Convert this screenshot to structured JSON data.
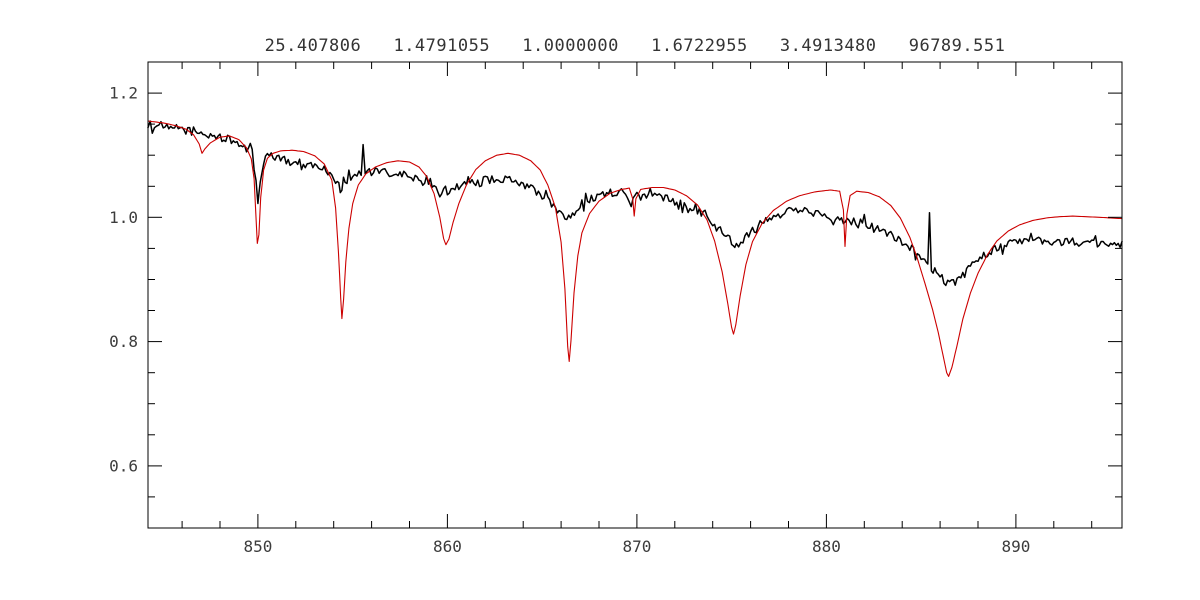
{
  "page": {
    "background": "#ffffff"
  },
  "chart_data": {
    "type": "line",
    "title": "25.407806   1.4791055   1.0000000   1.6722955   3.4913480   96789.551",
    "title_values": [
      "25.407806",
      "1.4791055",
      "1.0000000",
      "1.6722955",
      "3.4913480",
      "96789.551"
    ],
    "xlabel": "",
    "ylabel": "",
    "xlim": [
      844.2,
      895.6
    ],
    "ylim": [
      0.5,
      1.25
    ],
    "x_major_ticks": [
      850,
      860,
      870,
      880,
      890
    ],
    "x_tick_labels": [
      "850",
      "860",
      "870",
      "880",
      "890"
    ],
    "x_minor_step": 2,
    "y_major_ticks": [
      0.6,
      0.8,
      1.0,
      1.2
    ],
    "y_tick_labels": [
      "0.6",
      "0.8",
      "1.0",
      "1.2"
    ],
    "y_minor_step": 0.05,
    "grid": false,
    "legend": "none",
    "frame_color": "#000000",
    "tick_label_color": "#3c3c3c",
    "series": [
      {
        "name": "observed-spectrum",
        "color": "#000000",
        "stroke_width": 1.5,
        "noise_amplitude": 0.0065,
        "points": [
          [
            844.2,
            1.15
          ],
          [
            845.0,
            1.147
          ],
          [
            845.4,
            1.141
          ],
          [
            845.8,
            1.145
          ],
          [
            846.3,
            1.139
          ],
          [
            846.8,
            1.135
          ],
          [
            847.3,
            1.133
          ],
          [
            847.8,
            1.13
          ],
          [
            848.3,
            1.127
          ],
          [
            848.8,
            1.12
          ],
          [
            849.3,
            1.114
          ],
          [
            849.7,
            1.104
          ],
          [
            849.9,
            1.062
          ],
          [
            850.0,
            1.026
          ],
          [
            850.12,
            1.058
          ],
          [
            850.4,
            1.098
          ],
          [
            850.9,
            1.097
          ],
          [
            851.4,
            1.092
          ],
          [
            852.0,
            1.088
          ],
          [
            852.6,
            1.086
          ],
          [
            853.2,
            1.082
          ],
          [
            853.7,
            1.074
          ],
          [
            854.1,
            1.06
          ],
          [
            854.35,
            1.046
          ],
          [
            854.6,
            1.058
          ],
          [
            855.0,
            1.068
          ],
          [
            855.45,
            1.071
          ],
          [
            855.55,
            1.118
          ],
          [
            855.66,
            1.07
          ],
          [
            856.1,
            1.074
          ],
          [
            856.7,
            1.072
          ],
          [
            857.3,
            1.07
          ],
          [
            857.9,
            1.067
          ],
          [
            858.4,
            1.062
          ],
          [
            858.9,
            1.054
          ],
          [
            859.3,
            1.045
          ],
          [
            859.6,
            1.038
          ],
          [
            859.9,
            1.041
          ],
          [
            860.3,
            1.047
          ],
          [
            860.8,
            1.052
          ],
          [
            861.4,
            1.057
          ],
          [
            862.0,
            1.06
          ],
          [
            862.7,
            1.062
          ],
          [
            863.4,
            1.059
          ],
          [
            864.0,
            1.054
          ],
          [
            864.6,
            1.044
          ],
          [
            865.1,
            1.032
          ],
          [
            865.6,
            1.019
          ],
          [
            866.0,
            1.007
          ],
          [
            866.3,
            0.997
          ],
          [
            866.6,
            1.007
          ],
          [
            867.0,
            1.019
          ],
          [
            867.5,
            1.029
          ],
          [
            868.1,
            1.036
          ],
          [
            868.7,
            1.04
          ],
          [
            869.3,
            1.04
          ],
          [
            869.7,
            1.017
          ],
          [
            870.1,
            1.034
          ],
          [
            870.7,
            1.035
          ],
          [
            871.3,
            1.032
          ],
          [
            871.9,
            1.027
          ],
          [
            872.5,
            1.021
          ],
          [
            873.1,
            1.014
          ],
          [
            873.6,
            1.004
          ],
          [
            874.1,
            0.989
          ],
          [
            874.6,
            0.974
          ],
          [
            875.0,
            0.961
          ],
          [
            875.25,
            0.956
          ],
          [
            875.6,
            0.964
          ],
          [
            876.0,
            0.977
          ],
          [
            876.5,
            0.991
          ],
          [
            877.1,
            1.002
          ],
          [
            877.8,
            1.009
          ],
          [
            878.5,
            1.012
          ],
          [
            879.2,
            1.009
          ],
          [
            879.9,
            1.004
          ],
          [
            880.6,
            0.999
          ],
          [
            881.2,
            0.996
          ],
          [
            881.8,
            0.992
          ],
          [
            882.4,
            0.987
          ],
          [
            883.0,
            0.979
          ],
          [
            883.6,
            0.969
          ],
          [
            884.2,
            0.957
          ],
          [
            884.7,
            0.944
          ],
          [
            885.1,
            0.931
          ],
          [
            885.35,
            0.924
          ],
          [
            885.44,
            1.008
          ],
          [
            885.54,
            0.918
          ],
          [
            885.9,
            0.911
          ],
          [
            886.2,
            0.899
          ],
          [
            886.5,
            0.892
          ],
          [
            886.8,
            0.897
          ],
          [
            887.2,
            0.907
          ],
          [
            887.6,
            0.919
          ],
          [
            888.0,
            0.931
          ],
          [
            888.5,
            0.943
          ],
          [
            889.0,
            0.951
          ],
          [
            889.6,
            0.957
          ],
          [
            890.2,
            0.961
          ],
          [
            890.8,
            0.963
          ],
          [
            891.4,
            0.961
          ],
          [
            892.0,
            0.959
          ],
          [
            892.6,
            0.961
          ],
          [
            893.2,
            0.962
          ],
          [
            893.8,
            0.957
          ],
          [
            894.4,
            0.956
          ],
          [
            895.0,
            0.96
          ],
          [
            895.6,
            0.957
          ]
        ]
      },
      {
        "name": "model-spectrum",
        "color": "#cc0000",
        "stroke_width": 1.1,
        "noise_amplitude": 0,
        "points": [
          [
            844.2,
            1.155
          ],
          [
            845.0,
            1.152
          ],
          [
            845.6,
            1.148
          ],
          [
            846.2,
            1.142
          ],
          [
            846.6,
            1.133
          ],
          [
            846.9,
            1.118
          ],
          [
            847.05,
            1.103
          ],
          [
            847.2,
            1.11
          ],
          [
            847.5,
            1.12
          ],
          [
            848.0,
            1.129
          ],
          [
            848.5,
            1.131
          ],
          [
            849.0,
            1.125
          ],
          [
            849.4,
            1.112
          ],
          [
            849.65,
            1.094
          ],
          [
            849.8,
            1.062
          ],
          [
            849.9,
            1.0
          ],
          [
            849.97,
            0.958
          ],
          [
            850.05,
            0.972
          ],
          [
            850.15,
            1.032
          ],
          [
            850.3,
            1.076
          ],
          [
            850.5,
            1.095
          ],
          [
            850.8,
            1.103
          ],
          [
            851.2,
            1.107
          ],
          [
            851.8,
            1.108
          ],
          [
            852.4,
            1.106
          ],
          [
            853.0,
            1.099
          ],
          [
            853.5,
            1.086
          ],
          [
            853.9,
            1.06
          ],
          [
            854.1,
            1.015
          ],
          [
            854.25,
            0.945
          ],
          [
            854.37,
            0.87
          ],
          [
            854.43,
            0.837
          ],
          [
            854.52,
            0.868
          ],
          [
            854.64,
            0.928
          ],
          [
            854.8,
            0.982
          ],
          [
            855.0,
            1.022
          ],
          [
            855.3,
            1.052
          ],
          [
            855.7,
            1.07
          ],
          [
            856.2,
            1.081
          ],
          [
            856.8,
            1.088
          ],
          [
            857.4,
            1.091
          ],
          [
            858.0,
            1.089
          ],
          [
            858.5,
            1.081
          ],
          [
            858.9,
            1.066
          ],
          [
            859.3,
            1.038
          ],
          [
            859.6,
            1.0
          ],
          [
            859.8,
            0.966
          ],
          [
            859.92,
            0.956
          ],
          [
            860.08,
            0.965
          ],
          [
            860.3,
            0.992
          ],
          [
            860.6,
            1.022
          ],
          [
            861.0,
            1.052
          ],
          [
            861.5,
            1.077
          ],
          [
            862.0,
            1.091
          ],
          [
            862.6,
            1.1
          ],
          [
            863.2,
            1.103
          ],
          [
            863.8,
            1.1
          ],
          [
            864.4,
            1.091
          ],
          [
            864.9,
            1.076
          ],
          [
            865.3,
            1.052
          ],
          [
            865.7,
            1.016
          ],
          [
            866.0,
            0.96
          ],
          [
            866.2,
            0.885
          ],
          [
            866.35,
            0.792
          ],
          [
            866.43,
            0.768
          ],
          [
            866.52,
            0.802
          ],
          [
            866.68,
            0.878
          ],
          [
            866.88,
            0.938
          ],
          [
            867.1,
            0.975
          ],
          [
            867.5,
            1.006
          ],
          [
            868.0,
            1.026
          ],
          [
            868.6,
            1.039
          ],
          [
            869.2,
            1.045
          ],
          [
            869.6,
            1.047
          ],
          [
            869.78,
            1.03
          ],
          [
            869.86,
            1.002
          ],
          [
            869.95,
            1.03
          ],
          [
            870.2,
            1.045
          ],
          [
            870.8,
            1.048
          ],
          [
            871.4,
            1.048
          ],
          [
            872.0,
            1.044
          ],
          [
            872.6,
            1.035
          ],
          [
            873.2,
            1.02
          ],
          [
            873.7,
            0.996
          ],
          [
            874.1,
            0.962
          ],
          [
            874.5,
            0.912
          ],
          [
            874.8,
            0.86
          ],
          [
            875.0,
            0.823
          ],
          [
            875.1,
            0.812
          ],
          [
            875.22,
            0.827
          ],
          [
            875.45,
            0.874
          ],
          [
            875.75,
            0.924
          ],
          [
            876.1,
            0.961
          ],
          [
            876.6,
            0.99
          ],
          [
            877.2,
            1.011
          ],
          [
            877.9,
            1.026
          ],
          [
            878.6,
            1.035
          ],
          [
            879.4,
            1.041
          ],
          [
            880.2,
            1.044
          ],
          [
            880.7,
            1.042
          ],
          [
            880.9,
            1.012
          ],
          [
            880.98,
            0.953
          ],
          [
            881.08,
            1.005
          ],
          [
            881.25,
            1.035
          ],
          [
            881.6,
            1.042
          ],
          [
            882.2,
            1.04
          ],
          [
            882.8,
            1.033
          ],
          [
            883.4,
            1.019
          ],
          [
            883.9,
            0.999
          ],
          [
            884.4,
            0.968
          ],
          [
            884.8,
            0.934
          ],
          [
            885.2,
            0.894
          ],
          [
            885.6,
            0.852
          ],
          [
            885.9,
            0.815
          ],
          [
            886.15,
            0.779
          ],
          [
            886.35,
            0.75
          ],
          [
            886.45,
            0.744
          ],
          [
            886.62,
            0.758
          ],
          [
            886.88,
            0.792
          ],
          [
            887.2,
            0.836
          ],
          [
            887.6,
            0.878
          ],
          [
            888.0,
            0.91
          ],
          [
            888.5,
            0.94
          ],
          [
            889.0,
            0.962
          ],
          [
            889.6,
            0.978
          ],
          [
            890.2,
            0.988
          ],
          [
            890.9,
            0.995
          ],
          [
            891.6,
            0.999
          ],
          [
            892.3,
            1.001
          ],
          [
            893.0,
            1.002
          ],
          [
            893.7,
            1.001
          ],
          [
            894.4,
            1.0
          ],
          [
            895.0,
            0.999
          ],
          [
            895.6,
            0.998
          ]
        ]
      }
    ]
  }
}
